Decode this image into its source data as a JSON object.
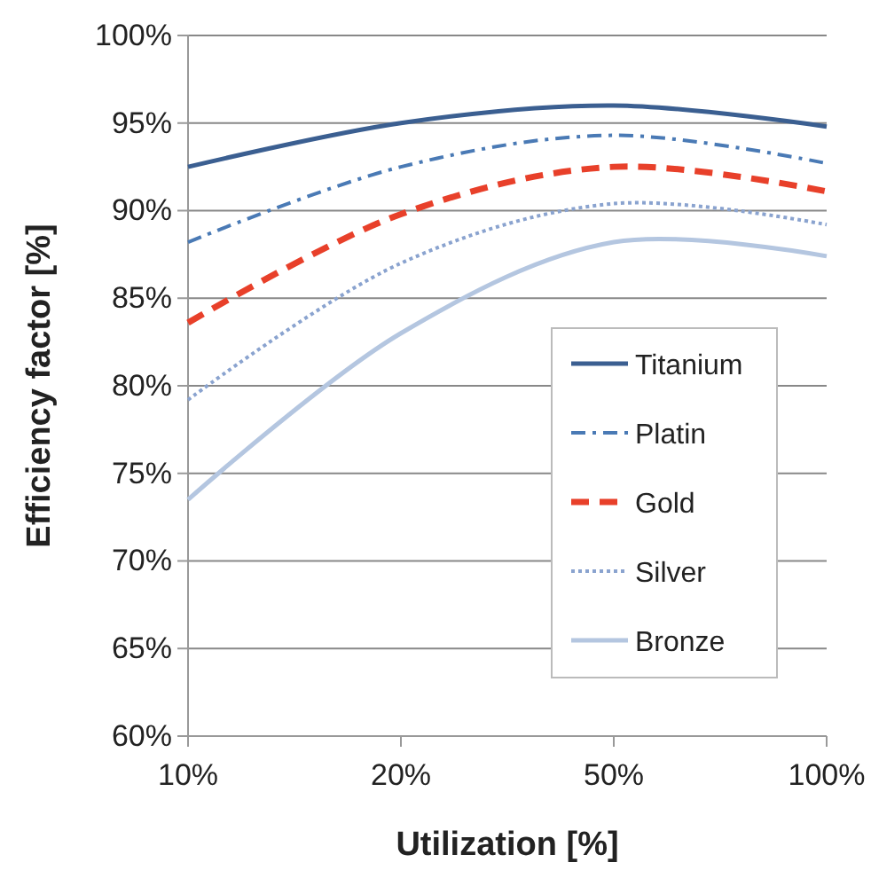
{
  "chart_data": {
    "type": "line",
    "xlabel": "Utilization [%]",
    "ylabel": "Efficiency factor [%]",
    "categories": [
      "10%",
      "20%",
      "50%",
      "100%"
    ],
    "ylim": [
      60,
      100
    ],
    "yticks": [
      {
        "value": 60,
        "label": "60%"
      },
      {
        "value": 65,
        "label": "65%"
      },
      {
        "value": 70,
        "label": "70%"
      },
      {
        "value": 75,
        "label": "75%"
      },
      {
        "value": 80,
        "label": "80%"
      },
      {
        "value": 85,
        "label": "85%"
      },
      {
        "value": 90,
        "label": "90%"
      },
      {
        "value": 95,
        "label": "95%"
      },
      {
        "value": 100,
        "label": "100%"
      }
    ],
    "grid": "y",
    "legend": "right",
    "marker": "none",
    "series": [
      {
        "name": "Titanium",
        "color": "#3b5f91",
        "line_style": "solid",
        "values": [
          92.5,
          95,
          96,
          94.8
        ]
      },
      {
        "name": "Platin",
        "color": "#4a7ab5",
        "line_style": "dashdot",
        "values": [
          88.2,
          92.5,
          94.3,
          92.7
        ]
      },
      {
        "name": "Gold",
        "color": "#e8402a",
        "line_style": "dashed",
        "values": [
          83.6,
          89.8,
          92.5,
          91.1
        ]
      },
      {
        "name": "Silver",
        "color": "#8aa3cf",
        "line_style": "dotted",
        "values": [
          79.2,
          87,
          90.4,
          89.2
        ]
      },
      {
        "name": "Bronze",
        "color": "#b4c6e0",
        "line_style": "solid",
        "values": [
          73.5,
          83,
          88.2,
          87.4
        ]
      }
    ]
  }
}
